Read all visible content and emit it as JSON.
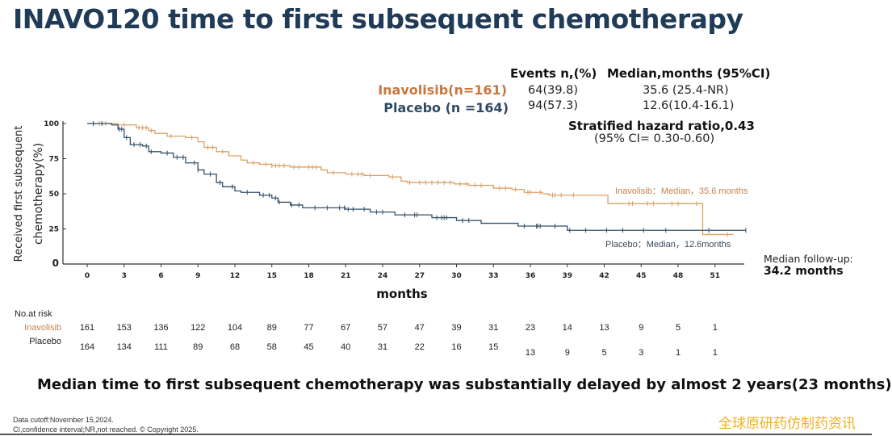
{
  "title": "INAVO120 time to first subsequent chemotherapy",
  "stats": {
    "events_header": "Events n,(%)",
    "median_header": "Median,months (95%CI)",
    "rows": [
      {
        "label": "Inavolisib(n=161)",
        "events": "64(39.8)",
        "median": "35.6 (25.4-NR)"
      },
      {
        "label": "Placebo (n =164)",
        "events": "94(57.3)",
        "median": "12.6(10.4-16.1)"
      }
    ],
    "hazard_ratio": "Stratified hazard ratio,0.43",
    "hazard_ci": "(95% CI= 0.30-0.60)"
  },
  "chart_data": {
    "type": "line",
    "subtype": "kaplan-meier step",
    "ylabel_line1": "Received first subsequent",
    "ylabel_line2": "chemotherapy(%)",
    "xlabel": "months",
    "xlim": [
      0,
      54
    ],
    "ylim": [
      0,
      100
    ],
    "xticks": [
      0,
      3,
      6,
      9,
      12,
      15,
      18,
      21,
      24,
      27,
      30,
      33,
      36,
      39,
      42,
      45,
      48,
      51
    ],
    "yticks": [
      0,
      25,
      50,
      75,
      100
    ],
    "grid": false,
    "colors": {
      "inavolisib": "#d9a165",
      "placebo": "#33506a"
    },
    "series": [
      {
        "name": "Inavolisib",
        "steps": [
          [
            0,
            100
          ],
          [
            2.5,
            99
          ],
          [
            4,
            97
          ],
          [
            5,
            95
          ],
          [
            5.5,
            93
          ],
          [
            6.5,
            91
          ],
          [
            8,
            90
          ],
          [
            9,
            87
          ],
          [
            9.5,
            83
          ],
          [
            10.5,
            80
          ],
          [
            11.5,
            77
          ],
          [
            12.5,
            74
          ],
          [
            13,
            72
          ],
          [
            14,
            71
          ],
          [
            15,
            70
          ],
          [
            16.5,
            69
          ],
          [
            19,
            67
          ],
          [
            19.5,
            65
          ],
          [
            21,
            64
          ],
          [
            22.5,
            63
          ],
          [
            24.5,
            62
          ],
          [
            25.5,
            59
          ],
          [
            26,
            58
          ],
          [
            29.8,
            57
          ],
          [
            31,
            56
          ],
          [
            33,
            54
          ],
          [
            34.5,
            53
          ],
          [
            35.5,
            51
          ],
          [
            37,
            50
          ],
          [
            37.5,
            49
          ],
          [
            42.3,
            43
          ],
          [
            50,
            21
          ],
          [
            52.5,
            21
          ]
        ],
        "censored": [
          0.5,
          1,
          1.5,
          3,
          4.2,
          4.5,
          4.8,
          5.2,
          6.8,
          8.5,
          9.8,
          10.2,
          11,
          13.5,
          14.5,
          15,
          15.3,
          15.6,
          16,
          16.8,
          17.2,
          18,
          18.3,
          18.6,
          20,
          21.5,
          22,
          22.3,
          23,
          24.8,
          26.2,
          27,
          27.5,
          28,
          28.5,
          29,
          29.5,
          30.3,
          30.8,
          31.5,
          32,
          33.5,
          34,
          34.8,
          35.8,
          36,
          36.8,
          37.8,
          38,
          38.5,
          39.5,
          44,
          44.3,
          45.5,
          46,
          47.5,
          48,
          49.5,
          52
        ]
      },
      {
        "name": "Placebo",
        "steps": [
          [
            0,
            100
          ],
          [
            2,
            99
          ],
          [
            2.5,
            96
          ],
          [
            3,
            90
          ],
          [
            3.5,
            85
          ],
          [
            4.5,
            84
          ],
          [
            5,
            80
          ],
          [
            6,
            79
          ],
          [
            7,
            76
          ],
          [
            8,
            72
          ],
          [
            9,
            67
          ],
          [
            9.5,
            64
          ],
          [
            10.5,
            58
          ],
          [
            11,
            55
          ],
          [
            12,
            52
          ],
          [
            12.5,
            51
          ],
          [
            14,
            49
          ],
          [
            15,
            47
          ],
          [
            15.5,
            44
          ],
          [
            16.5,
            42
          ],
          [
            17.5,
            40
          ],
          [
            21,
            39
          ],
          [
            23,
            37
          ],
          [
            25,
            35
          ],
          [
            28,
            33
          ],
          [
            30,
            31
          ],
          [
            32,
            29
          ],
          [
            35,
            27
          ],
          [
            39,
            24
          ],
          [
            53.5,
            24
          ]
        ],
        "censored": [
          0.5,
          1.2,
          2.6,
          2.8,
          3.2,
          3.8,
          4.3,
          4.8,
          5.2,
          6.5,
          7.3,
          7.8,
          8.7,
          9,
          10,
          10.8,
          11.8,
          13,
          14.3,
          14.8,
          15.3,
          15.6,
          16.6,
          17.2,
          18.5,
          19.5,
          20.5,
          20.9,
          21.2,
          21.6,
          22.5,
          23.5,
          24,
          25.8,
          26.6,
          26.8,
          28.4,
          28.8,
          29,
          29.2,
          30.5,
          31,
          35.5,
          36.5,
          36.6,
          36.8,
          38,
          39.2,
          40.5,
          42.2,
          43.5,
          45.2,
          47,
          50.5,
          53.5
        ]
      }
    ],
    "annotations": {
      "inavolisib": "Inavolisib：Median，35.6 months",
      "placebo": "Placebo：Median，12.6months"
    }
  },
  "followup": {
    "label": "Median   follow-up:",
    "value": "34.2 months"
  },
  "risk_table": {
    "header": "No.at  risk",
    "rows": [
      {
        "label": "Inavolisib",
        "values": [
          "161",
          "153",
          "136",
          "122",
          "104",
          "89",
          "77",
          "67",
          "57",
          "47",
          "39",
          "31",
          "23",
          "14",
          "13",
          "9",
          "5",
          "1"
        ]
      },
      {
        "label": "Placebo",
        "values": [
          "164",
          "134",
          "111",
          "89",
          "68",
          "58",
          "45",
          "40",
          "31",
          "22",
          "16",
          "15",
          "13",
          "9",
          "5",
          "3",
          "1",
          "1"
        ]
      }
    ]
  },
  "headline": "Median  time to first subsequent chemotherapy was substantially delayed by almost 2 years(23 months)",
  "footnotes": [
    "Data  cutoff:November  15,2024.",
    "CI,confidence  interval;NR,not  reached. © Copyright  2025."
  ],
  "watermark": "全球原研药仿制药资讯"
}
